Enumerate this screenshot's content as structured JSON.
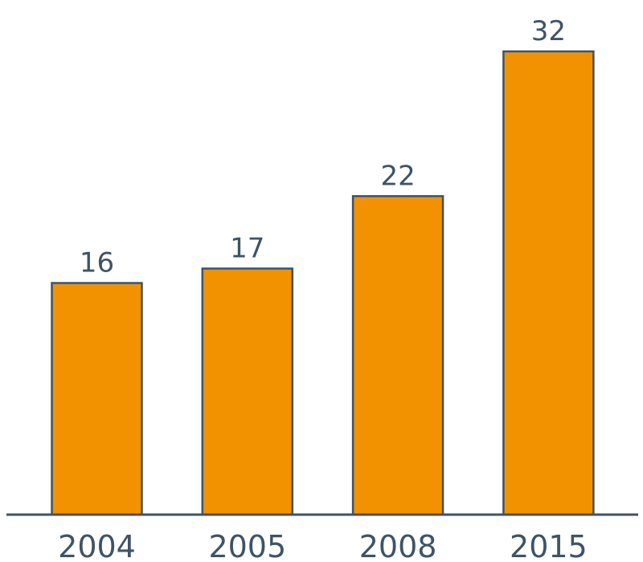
{
  "colors": {
    "bar_fill": "#f39200",
    "bar_stroke": "#3e5366",
    "text": "#3e5366",
    "axis": "#3e5366"
  },
  "chart_data": {
    "type": "bar",
    "categories": [
      "2004",
      "2005",
      "2008",
      "2015"
    ],
    "values": [
      16,
      17,
      22,
      32
    ],
    "value_labels": [
      "16",
      "17",
      "22",
      "32"
    ],
    "title": "",
    "xlabel": "",
    "ylabel": "",
    "ylim": [
      0,
      32
    ],
    "grid": false,
    "legend": "none",
    "y_axis_visible": false
  }
}
